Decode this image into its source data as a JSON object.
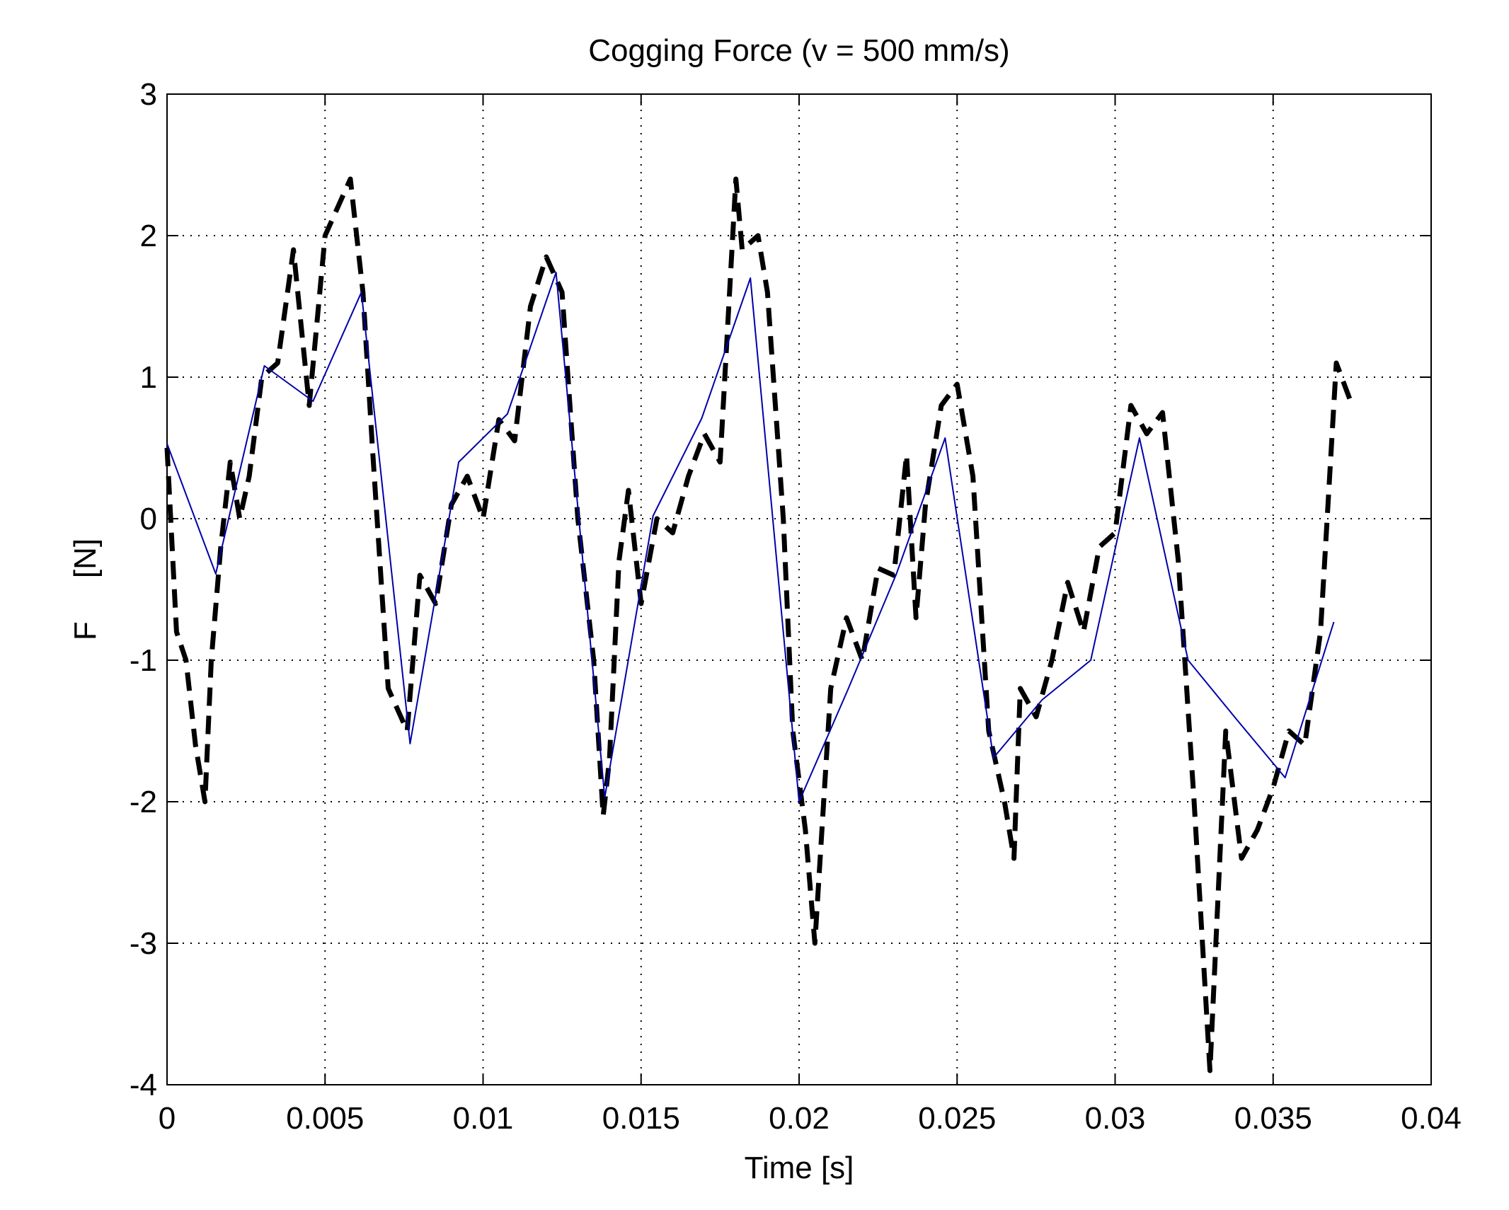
{
  "chart_data": {
    "type": "line",
    "title": "Cogging Force (v = 500 mm/s)",
    "x_label": "Time [s]",
    "y_label": "F     [N]",
    "xlim": [
      0,
      0.04
    ],
    "ylim": [
      -4,
      3
    ],
    "xticks": [
      0,
      0.005,
      0.01,
      0.015,
      0.02,
      0.025,
      0.03,
      0.035,
      0.04
    ],
    "yticks": [
      -4,
      -3,
      -2,
      -1,
      0,
      1,
      2,
      3
    ],
    "grid": true,
    "series": [
      {
        "color": "#000000",
        "dashed": true,
        "x": [
          0,
          0.0003,
          0.0006,
          0.0009,
          0.0012,
          0.0014,
          0.0017,
          0.002,
          0.0023,
          0.0026,
          0.003,
          0.0035,
          0.004,
          0.0045,
          0.005,
          0.0058,
          0.0062,
          0.0065,
          0.007,
          0.0076,
          0.008,
          0.0085,
          0.009,
          0.0095,
          0.01,
          0.0105,
          0.011,
          0.0115,
          0.012,
          0.0125,
          0.013,
          0.0135,
          0.0138,
          0.014,
          0.0143,
          0.0146,
          0.015,
          0.0155,
          0.016,
          0.0165,
          0.017,
          0.0175,
          0.018,
          0.0182,
          0.0187,
          0.019,
          0.0195,
          0.0198,
          0.0202,
          0.0205,
          0.021,
          0.0215,
          0.022,
          0.0225,
          0.023,
          0.0234,
          0.0237,
          0.024,
          0.0245,
          0.025,
          0.0255,
          0.026,
          0.0265,
          0.0268,
          0.027,
          0.0275,
          0.028,
          0.0285,
          0.029,
          0.0295,
          0.03,
          0.0305,
          0.031,
          0.0315,
          0.032,
          0.0325,
          0.033,
          0.0335,
          0.034,
          0.0345,
          0.035,
          0.0355,
          0.036,
          0.0365,
          0.037,
          0.0375
        ],
        "values": [
          0.5,
          -0.8,
          -1.0,
          -1.6,
          -2.0,
          -1.0,
          -0.2,
          0.4,
          0.0,
          0.3,
          1.0,
          1.1,
          1.9,
          0.8,
          2.0,
          2.4,
          1.6,
          0.5,
          -1.2,
          -1.5,
          -0.4,
          -0.6,
          0.1,
          0.3,
          0.0,
          0.7,
          0.55,
          1.5,
          1.85,
          1.6,
          0.0,
          -1.0,
          -2.1,
          -1.7,
          -0.3,
          0.2,
          -0.6,
          0.0,
          -0.1,
          0.3,
          0.6,
          0.4,
          2.4,
          1.9,
          2.0,
          1.6,
          0.0,
          -1.5,
          -2.2,
          -3.0,
          -1.2,
          -0.7,
          -1.0,
          -0.35,
          -0.4,
          0.45,
          -0.7,
          0.1,
          0.8,
          0.95,
          0.3,
          -1.5,
          -2.0,
          -2.4,
          -1.2,
          -1.4,
          -1.0,
          -0.45,
          -0.8,
          -0.2,
          -0.1,
          0.8,
          0.6,
          0.75,
          -0.3,
          -2.0,
          -3.9,
          -1.5,
          -2.4,
          -2.2,
          -1.9,
          -1.5,
          -1.6,
          -0.8,
          1.1,
          0.8
        ]
      },
      {
        "color": "#0000aa",
        "dashed": false,
        "x": [
          0,
          0.00154,
          0.00308,
          0.00462,
          0.00615,
          0.00769,
          0.00923,
          0.01077,
          0.01231,
          0.01385,
          0.01538,
          0.01692,
          0.01846,
          0.02,
          0.02154,
          0.02308,
          0.02462,
          0.02615,
          0.02769,
          0.02923,
          0.03077,
          0.03231,
          0.03385,
          0.03538,
          0.03692
        ],
        "values": [
          0.53,
          -0.39,
          1.08,
          0.83,
          1.6,
          -1.59,
          0.4,
          0.74,
          1.74,
          -1.97,
          0.02,
          0.71,
          1.7,
          -2.0,
          -1.21,
          -0.39,
          0.57,
          -1.69,
          -1.28,
          -1.0,
          0.57,
          -1.0,
          -1.42,
          -1.83,
          -0.73
        ]
      }
    ]
  }
}
